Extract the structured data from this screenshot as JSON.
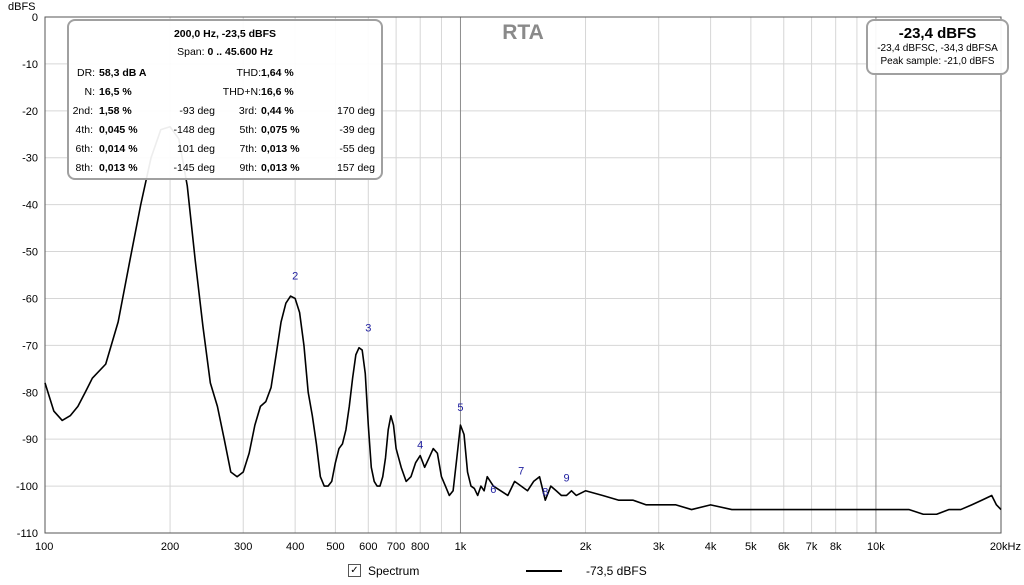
{
  "chart_data": {
    "type": "line",
    "title": "RTA",
    "ylabel": "dBFS",
    "xscale": "log",
    "xlim": [
      100,
      20000
    ],
    "ylim": [
      -110,
      0
    ],
    "y_ticks": [
      0,
      -10,
      -20,
      -30,
      -40,
      -50,
      -60,
      -70,
      -80,
      -90,
      -100,
      -110
    ],
    "x_ticks": [
      {
        "value": 100,
        "label": "100"
      },
      {
        "value": 200,
        "label": "200"
      },
      {
        "value": 300,
        "label": "300"
      },
      {
        "value": 400,
        "label": "400"
      },
      {
        "value": 500,
        "label": "500"
      },
      {
        "value": 600,
        "label": "600"
      },
      {
        "value": 700,
        "label": "700"
      },
      {
        "value": 800,
        "label": "800"
      },
      {
        "value": 1000,
        "label": "1k"
      },
      {
        "value": 2000,
        "label": "2k"
      },
      {
        "value": 3000,
        "label": "3k"
      },
      {
        "value": 4000,
        "label": "4k"
      },
      {
        "value": 5000,
        "label": "5k"
      },
      {
        "value": 6000,
        "label": "6k"
      },
      {
        "value": 7000,
        "label": "7k"
      },
      {
        "value": 8000,
        "label": "8k"
      },
      {
        "value": 10000,
        "label": "10k"
      },
      {
        "value": 20000,
        "label": "20kHz"
      }
    ],
    "grid": true,
    "legend": "bottom",
    "series": [
      {
        "name": "Spectrum",
        "x": [
          100,
          105,
          110,
          115,
          120,
          125,
          130,
          140,
          150,
          160,
          170,
          180,
          190,
          200,
          210,
          220,
          230,
          240,
          250,
          260,
          270,
          280,
          290,
          300,
          310,
          320,
          330,
          340,
          350,
          360,
          370,
          380,
          390,
          400,
          410,
          420,
          430,
          440,
          450,
          460,
          470,
          480,
          490,
          500,
          510,
          520,
          530,
          540,
          550,
          560,
          570,
          580,
          590,
          600,
          610,
          620,
          630,
          640,
          650,
          660,
          670,
          680,
          690,
          700,
          720,
          740,
          760,
          780,
          800,
          820,
          840,
          860,
          880,
          900,
          920,
          940,
          960,
          980,
          1000,
          1020,
          1040,
          1060,
          1080,
          1100,
          1120,
          1140,
          1160,
          1180,
          1200,
          1250,
          1300,
          1350,
          1400,
          1450,
          1500,
          1550,
          1600,
          1650,
          1700,
          1750,
          1800,
          1850,
          1900,
          2000,
          2200,
          2400,
          2600,
          2800,
          3000,
          3300,
          3600,
          4000,
          4500,
          5000,
          5500,
          6000,
          7000,
          8000,
          9000,
          10000,
          11000,
          12000,
          13000,
          14000,
          15000,
          16000,
          17000,
          18000,
          19000,
          19500,
          20000
        ],
        "y": [
          -78,
          -84,
          -86,
          -85,
          -83,
          -80,
          -77,
          -74,
          -65,
          -52,
          -40,
          -30,
          -24,
          -23.4,
          -26,
          -36,
          -52,
          -66,
          -78,
          -83,
          -90,
          -97,
          -98,
          -97,
          -93,
          -87,
          -83,
          -82,
          -79,
          -72,
          -65,
          -61,
          -59.5,
          -60,
          -63,
          -70,
          -80,
          -85,
          -91,
          -98,
          -100,
          -100,
          -99,
          -95,
          -92,
          -91,
          -88,
          -83,
          -77,
          -72,
          -70.5,
          -71,
          -76,
          -87,
          -96,
          -99,
          -100,
          -100,
          -98,
          -94,
          -88,
          -85,
          -87,
          -92,
          -96,
          -99,
          -98,
          -95,
          -93.5,
          -96,
          -94,
          -92,
          -93,
          -98,
          -100,
          -102,
          -101,
          -94,
          -87,
          -89,
          -97,
          -100,
          -100.5,
          -102,
          -100,
          -101,
          -98,
          -99,
          -100,
          -101,
          -102,
          -99,
          -100,
          -101,
          -99,
          -98,
          -103,
          -100,
          -101,
          -102,
          -102,
          -101,
          -102,
          -101,
          -102,
          -103,
          -103,
          -104,
          -104,
          -104,
          -105,
          -104,
          -105,
          -105,
          -105,
          -105,
          -105,
          -105,
          -105,
          -105,
          -105,
          -105,
          -106,
          -106,
          -105,
          -105,
          -104,
          -103,
          -102,
          -104,
          -105
        ]
      }
    ],
    "harmonic_labels": [
      {
        "label": "2",
        "x": 400,
        "y": -56
      },
      {
        "label": "3",
        "x": 600,
        "y": -67
      },
      {
        "label": "4",
        "x": 800,
        "y": -92
      },
      {
        "label": "5",
        "x": 1000,
        "y": -84
      },
      {
        "label": "6",
        "x": 1200,
        "y": -101.5
      },
      {
        "label": "7",
        "x": 1400,
        "y": -97.5
      },
      {
        "label": "8",
        "x": 1600,
        "y": -102
      },
      {
        "label": "9",
        "x": 1800,
        "y": -99
      }
    ]
  },
  "stats": {
    "freq_readout": "200,0 Hz, -23,5 dBFS",
    "span_label": "Span:",
    "span_value": "0 .. 45.600 Hz",
    "dr_label": "DR:",
    "dr_value": "58,3 dB A",
    "thd_label": "THD:",
    "thd_value": "1,64 %",
    "n_label": "N:",
    "n_value": "16,5 %",
    "thdn_label": "THD+N:",
    "thdn_value": "16,6 %",
    "harmonics": [
      {
        "label": "2nd:",
        "value": "1,58 %",
        "phase": "-93 deg",
        "label2": "3rd:",
        "value2": "0,44 %",
        "phase2": "170 deg"
      },
      {
        "label": "4th:",
        "value": "0,045 %",
        "phase": "-148 deg",
        "label2": "5th:",
        "value2": "0,075 %",
        "phase2": "-39 deg"
      },
      {
        "label": "6th:",
        "value": "0,014 %",
        "phase": "101 deg",
        "label2": "7th:",
        "value2": "0,013 %",
        "phase2": "-55 deg"
      },
      {
        "label": "8th:",
        "value": "0,013 %",
        "phase": "-145 deg",
        "label2": "9th:",
        "value2": "0,013 %",
        "phase2": "157 deg"
      }
    ]
  },
  "level": {
    "main": "-23,4 dBFS",
    "sub1": "-23,4 dBFSC, -34,3 dBFSA",
    "sub2": "Peak sample: -21,0 dBFS"
  },
  "legend": {
    "check": "✓",
    "series_label": "Spectrum",
    "value": "-73,5 dBFS"
  }
}
